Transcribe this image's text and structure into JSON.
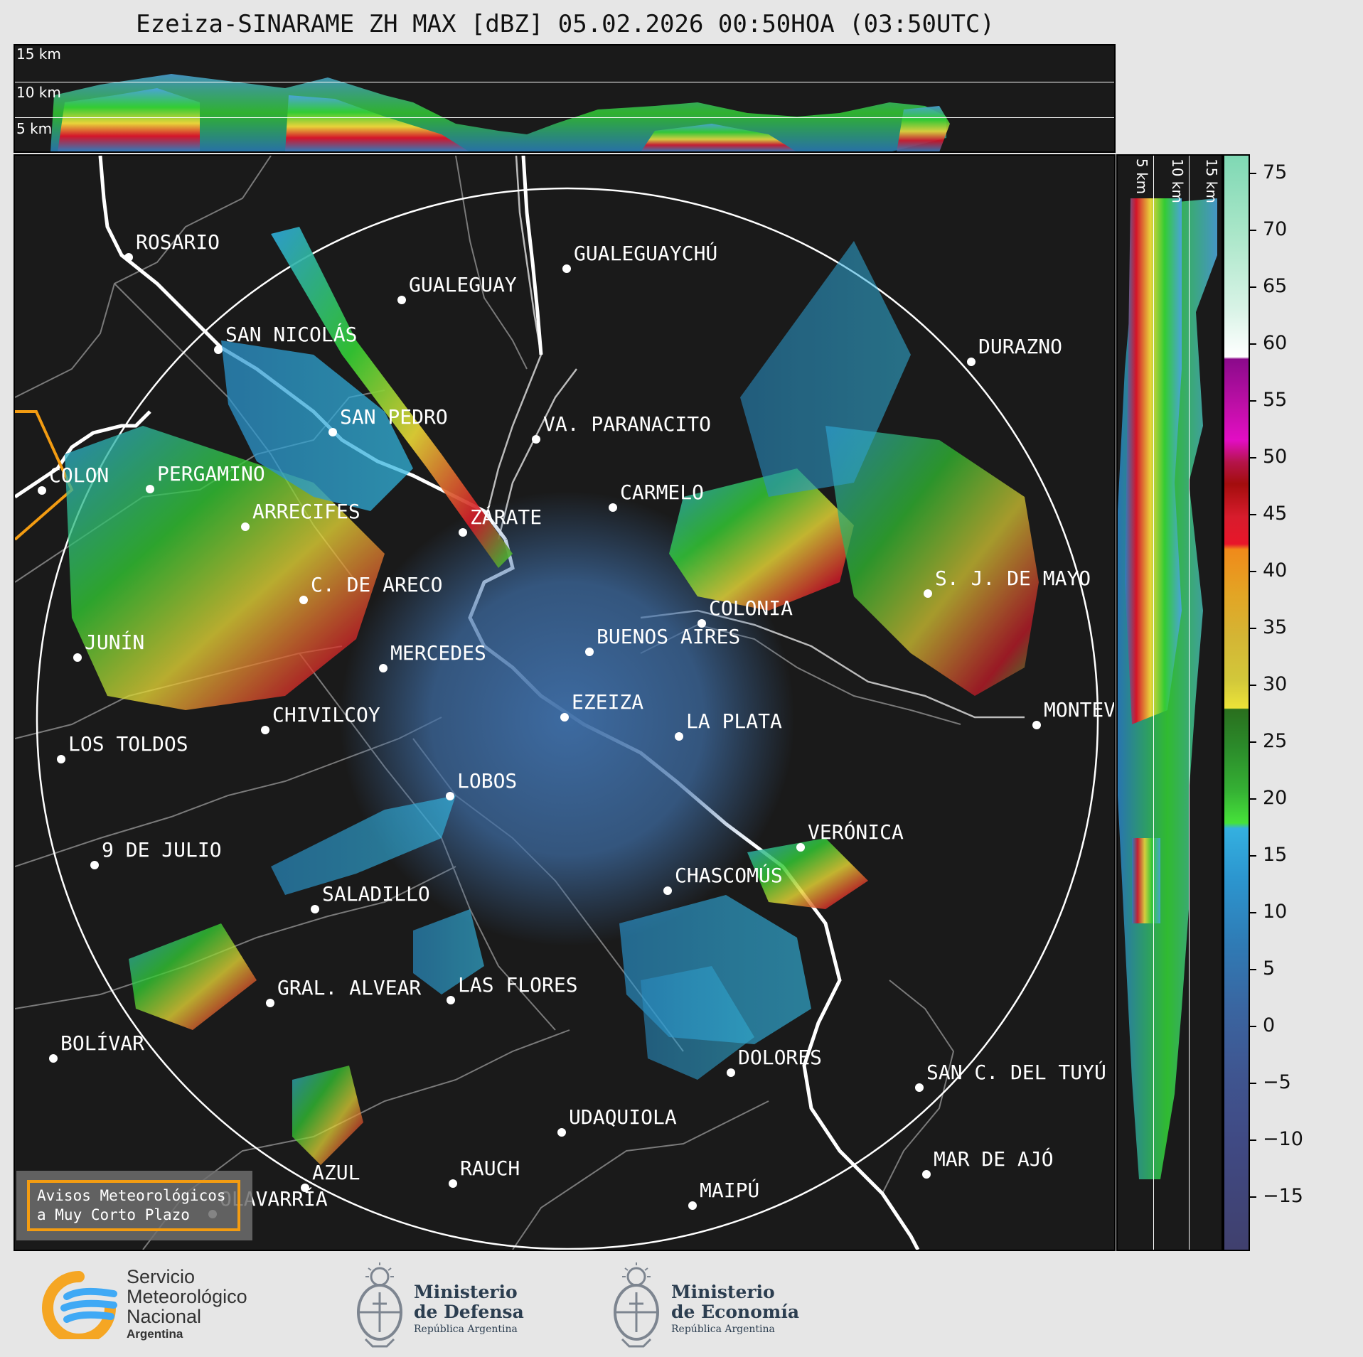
{
  "title": "Ezeiza-SINARAME ZH MAX [dBZ] 05.02.2026 00:50HOA (03:50UTC)",
  "altitude_labels": [
    "15 km",
    "10 km",
    "5 km"
  ],
  "colorbar": {
    "unit": "dBZ",
    "ticks": [
      "75",
      "70",
      "65",
      "60",
      "55",
      "50",
      "45",
      "40",
      "35",
      "30",
      "25",
      "20",
      "15",
      "10",
      "5",
      "0",
      "−5",
      "−10",
      "−15"
    ],
    "range": [
      -20,
      77
    ]
  },
  "cities": [
    {
      "name": "ROSARIO"
    },
    {
      "name": "GUALEGUAYCHÚ"
    },
    {
      "name": "GUALEGUAY"
    },
    {
      "name": "SAN NICOLÁS"
    },
    {
      "name": "DURAZNO"
    },
    {
      "name": "SAN PEDRO"
    },
    {
      "name": "VA. PARANACITO"
    },
    {
      "name": "COLON"
    },
    {
      "name": "PERGAMINO"
    },
    {
      "name": "CARMELO"
    },
    {
      "name": "ARRECIFES"
    },
    {
      "name": "ZÁRATE"
    },
    {
      "name": "C. DE ARECO"
    },
    {
      "name": "S. J. DE MAYO"
    },
    {
      "name": "COLONIA"
    },
    {
      "name": "JUNÍN"
    },
    {
      "name": "BUENOS AIRES"
    },
    {
      "name": "MERCEDES"
    },
    {
      "name": "EZEIZA"
    },
    {
      "name": "MONTEVIDEO"
    },
    {
      "name": "CHIVILCOY"
    },
    {
      "name": "LA PLATA"
    },
    {
      "name": "LOS TOLDOS"
    },
    {
      "name": "LOBOS"
    },
    {
      "name": "VERÓNICA"
    },
    {
      "name": "9 DE JULIO"
    },
    {
      "name": "CHASCOMÚS"
    },
    {
      "name": "SALADILLO"
    },
    {
      "name": "GRAL. ALVEAR"
    },
    {
      "name": "LAS FLORES"
    },
    {
      "name": "BOLÍVAR"
    },
    {
      "name": "DOLORES"
    },
    {
      "name": "SAN C. DEL TUYÚ"
    },
    {
      "name": "UDAQUIOLA"
    },
    {
      "name": "MAR DE AJÓ"
    },
    {
      "name": "RAUCH"
    },
    {
      "name": "AZUL"
    },
    {
      "name": "MAIPÚ"
    },
    {
      "name": "OLAVARRÍA"
    }
  ],
  "alert_box": {
    "line1": "Avisos Meteorológicos",
    "line2": "a Muy Corto Plazo"
  },
  "footer": {
    "smn": {
      "line1": "Servicio",
      "line2": "Meteorológico",
      "line3": "Nacional",
      "line4": "Argentina"
    },
    "defensa": {
      "line1": "Ministerio",
      "line2": "de Defensa",
      "line3": "República Argentina"
    },
    "economia": {
      "line1": "Ministerio",
      "line2": "de Economía",
      "line3": "República Argentina"
    }
  },
  "colors": {
    "background": "#1a1a1a",
    "accent_orange": "#f39c12",
    "smn_blue": "#3fa9f5",
    "smn_yellow": "#f5a623"
  }
}
